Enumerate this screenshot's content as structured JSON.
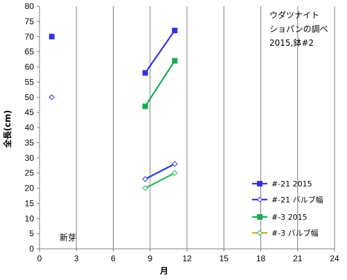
{
  "chart_data": {
    "type": "line",
    "title_lines": [
      "ウダツナイト",
      "ショパンの調べ",
      "2015,鉢#2"
    ],
    "xlabel": "月",
    "ylabel": "全長(cm)",
    "xlim": [
      0,
      24
    ],
    "ylim": [
      0,
      80
    ],
    "xticks": [
      0,
      3,
      6,
      9,
      12,
      15,
      18,
      21,
      24
    ],
    "yticks": [
      0,
      5,
      10,
      15,
      20,
      25,
      30,
      35,
      40,
      45,
      50,
      55,
      60,
      65,
      70,
      75,
      80
    ],
    "grid": {
      "vertical": true,
      "horizontal": false
    },
    "legend_position": "right",
    "annotation": "新芽",
    "series": [
      {
        "name": "#-21 2015",
        "color": "#3333dd",
        "marker": "square-filled",
        "segments": [
          [
            {
              "x": 1,
              "y": 70
            }
          ],
          [
            {
              "x": 8.6,
              "y": 58
            },
            {
              "x": 11,
              "y": 72
            }
          ]
        ]
      },
      {
        "name": "#-21 バルブ幅",
        "color": "#3333dd",
        "marker": "diamond-open",
        "segments": [
          [
            {
              "x": 1,
              "y": 50
            }
          ],
          [
            {
              "x": 8.6,
              "y": 23
            },
            {
              "x": 11,
              "y": 28
            }
          ]
        ]
      },
      {
        "name": "#-3 2015",
        "color": "#1aaa55",
        "marker": "square-filled",
        "segments": [
          [
            {
              "x": 8.6,
              "y": 47
            },
            {
              "x": 11,
              "y": 62
            }
          ]
        ]
      },
      {
        "name": "#-3 バルブ幅",
        "color": "#22bb55",
        "legend_line_color": "#e0a030",
        "marker": "diamond-open",
        "segments": [
          [
            {
              "x": 8.6,
              "y": 20
            },
            {
              "x": 11,
              "y": 25
            }
          ]
        ]
      }
    ]
  }
}
